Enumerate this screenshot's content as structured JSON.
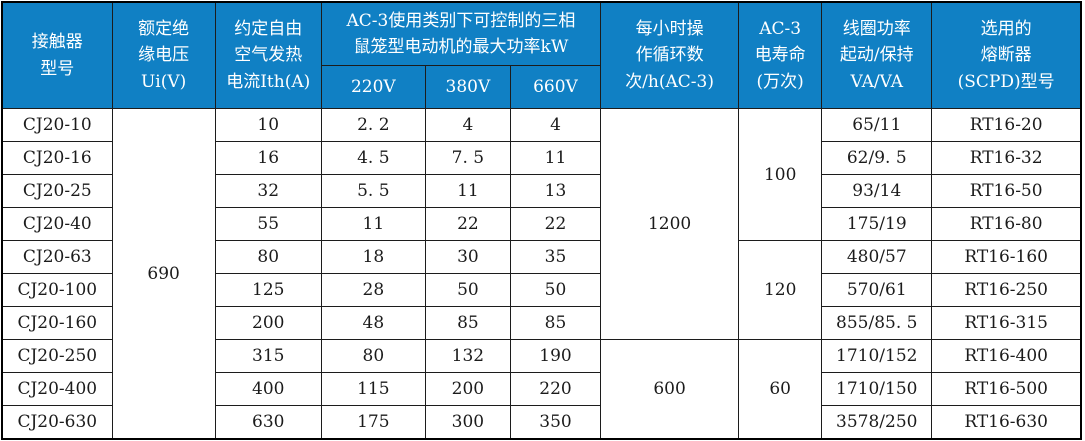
{
  "colors": {
    "header_bg": "#1080c4",
    "header_text": "#ffffff",
    "border": "#1c1c1c"
  },
  "table": {
    "header": {
      "model": "接触器\n型号",
      "insulation_voltage": "额定绝\n缘电压\nUi(V)",
      "thermal_current": "约定自由\n空气发热\n电流Ith(A)",
      "kw_group": "AC-3使用类别下可控制的三相\n鼠笼型电动机的最大功率kW",
      "kw_220": "220V",
      "kw_380": "380V",
      "kw_660": "660V",
      "cycles": "每小时操\n作循环数\n次/h(AC-3)",
      "electrical_life": "AC-3\n电寿命\n(万次)",
      "coil_power": "线圈功率\n起动/保持\nVA/VA",
      "fuse": "选用的\n熔断器\n(SCPD)型号"
    },
    "merged": {
      "ui_voltage": "690",
      "cycles_a": "1200",
      "cycles_b": "600",
      "life_a": "100",
      "life_b": "120",
      "life_c": "60"
    },
    "rows": [
      {
        "model": "CJ20-10",
        "ith": "10",
        "kw220": "2. 2",
        "kw380": "4",
        "kw660": "4",
        "coil": "65/11",
        "fuse": "RT16-20"
      },
      {
        "model": "CJ20-16",
        "ith": "16",
        "kw220": "4. 5",
        "kw380": "7. 5",
        "kw660": "11",
        "coil": "62/9. 5",
        "fuse": "RT16-32"
      },
      {
        "model": "CJ20-25",
        "ith": "32",
        "kw220": "5. 5",
        "kw380": "11",
        "kw660": "13",
        "coil": "93/14",
        "fuse": "RT16-50"
      },
      {
        "model": "CJ20-40",
        "ith": "55",
        "kw220": "11",
        "kw380": "22",
        "kw660": "22",
        "coil": "175/19",
        "fuse": "RT16-80"
      },
      {
        "model": "CJ20-63",
        "ith": "80",
        "kw220": "18",
        "kw380": "30",
        "kw660": "35",
        "coil": "480/57",
        "fuse": "RT16-160"
      },
      {
        "model": "CJ20-100",
        "ith": "125",
        "kw220": "28",
        "kw380": "50",
        "kw660": "50",
        "coil": "570/61",
        "fuse": "RT16-250"
      },
      {
        "model": "CJ20-160",
        "ith": "200",
        "kw220": "48",
        "kw380": "85",
        "kw660": "85",
        "coil": "855/85. 5",
        "fuse": "RT16-315"
      },
      {
        "model": "CJ20-250",
        "ith": "315",
        "kw220": "80",
        "kw380": "132",
        "kw660": "190",
        "coil": "1710/152",
        "fuse": "RT16-400"
      },
      {
        "model": "CJ20-400",
        "ith": "400",
        "kw220": "115",
        "kw380": "200",
        "kw660": "220",
        "coil": "1710/150",
        "fuse": "RT16-500"
      },
      {
        "model": "CJ20-630",
        "ith": "630",
        "kw220": "175",
        "kw380": "300",
        "kw660": "350",
        "coil": "3578/250",
        "fuse": "RT16-630"
      }
    ]
  }
}
